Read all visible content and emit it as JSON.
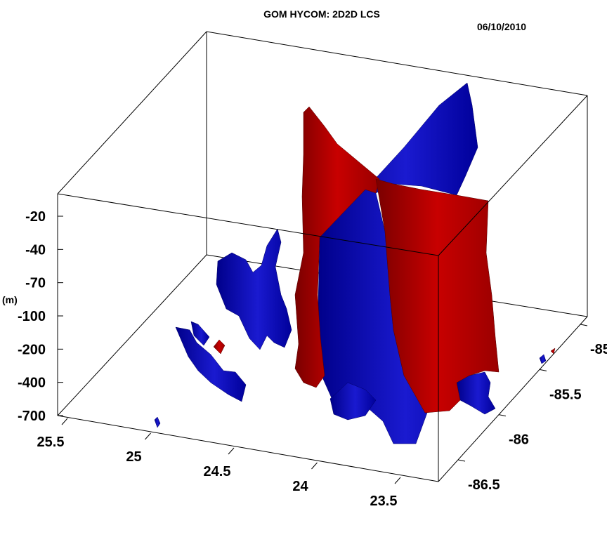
{
  "chart_data": {
    "type": "3d-isosurface",
    "title": "GOM HYCOM: 2D2D LCS",
    "date": "06/10/2010",
    "z_unit": "(m)",
    "z_ticks": [
      "-20",
      "-40",
      "-70",
      "-100",
      "-200",
      "-400",
      "-700"
    ],
    "lat_ticks": [
      "25.5",
      "25",
      "24.5",
      "24",
      "23.5"
    ],
    "lon_ticks": [
      "-85",
      "-85.5",
      "-86",
      "-86.5"
    ],
    "surfaces": [
      {
        "color": "#0000b4"
      },
      {
        "color": "#b40000"
      }
    ]
  }
}
